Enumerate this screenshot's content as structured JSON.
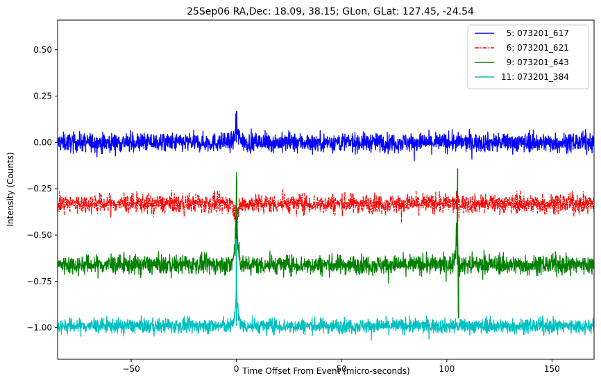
{
  "chart_data": {
    "type": "line",
    "title": "25Sep06 RA,Dec:   18.09,  38.15; GLon, GLat:  127.45, -24.54",
    "xlabel": "Time Offset From Event (micro-seconds)",
    "ylabel": "Intensity (Counts)",
    "xlim": [
      -85,
      170
    ],
    "ylim": [
      -1.17,
      0.66
    ],
    "x_ticks": [
      -50,
      0,
      50,
      100,
      150
    ],
    "x_tick_labels": [
      "−50",
      "0",
      "50",
      "100",
      "150"
    ],
    "y_ticks": [
      0.5,
      0.25,
      0.0,
      -0.25,
      -0.5,
      -0.75,
      -1.0
    ],
    "y_tick_labels": [
      "0.50",
      "0.25",
      "0.00",
      "−0.25",
      "−0.50",
      "−0.75",
      "−1.00"
    ],
    "grid": false,
    "legend_position": "top-right",
    "series": [
      {
        "name": "  5: 073201_617",
        "color": "#0000ff",
        "style": "solid",
        "baseline": 0.0,
        "noise_amplitude": 0.045,
        "spikes": [
          {
            "x": 0.0,
            "y": 0.17
          }
        ]
      },
      {
        "name": "  6: 073201_621",
        "color": "#ff0000",
        "style": "dashdot",
        "baseline": -0.33,
        "noise_amplitude": 0.045,
        "spikes": [
          {
            "x": 0.0,
            "y": -0.52
          }
        ]
      },
      {
        "name": "  9: 073201_643",
        "color": "#008000",
        "style": "solid",
        "baseline": -0.66,
        "noise_amplitude": 0.045,
        "spikes": [
          {
            "x": 0.0,
            "y": -0.2
          },
          {
            "x": 105.0,
            "y": -0.14
          },
          {
            "x": 105.5,
            "y": -0.95
          }
        ]
      },
      {
        "name": "11: 073201_384",
        "color": "#00bfbf",
        "style": "solid",
        "baseline": -0.99,
        "noise_amplitude": 0.035,
        "spikes": [
          {
            "x": 0.0,
            "y": -0.67
          }
        ]
      }
    ]
  }
}
